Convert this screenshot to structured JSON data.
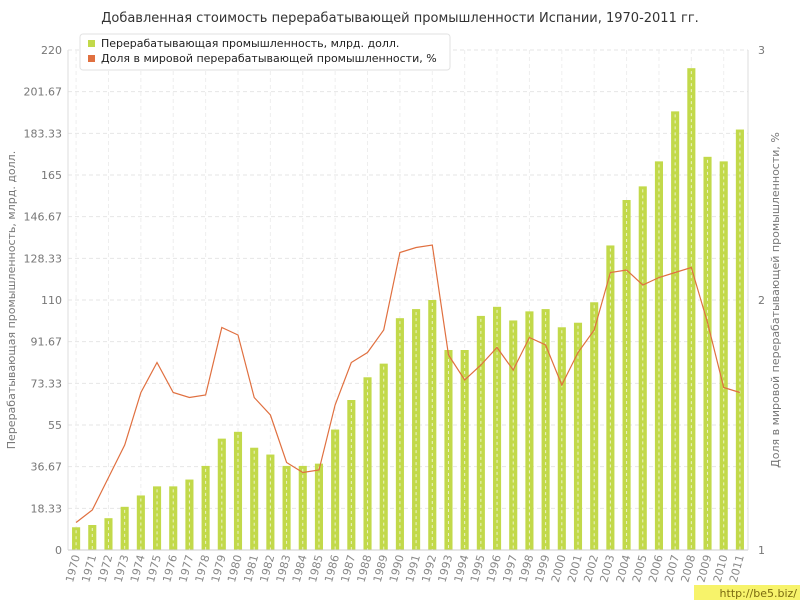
{
  "chart_data": {
    "type": "bar",
    "title": "Добавленная стоимость перерабатывающей промышленности Испании, 1970-2011 гг.",
    "ylabel_left": "Перерабатывающая промышленность, млрд. долл.",
    "ylabel_right": "Доля в мировой перерабатывающей промышленности, %",
    "ylim_left": [
      0,
      220
    ],
    "ylim_right": [
      1,
      3
    ],
    "yticks_left": [
      "0",
      "18.33",
      "36.67",
      "55",
      "73.33",
      "91.67",
      "110",
      "128.33",
      "146.67",
      "165",
      "183.33",
      "201.67",
      "220"
    ],
    "yticks_right": [
      "1",
      "2",
      "3"
    ],
    "grid": true,
    "legend_position": "top-left",
    "categories": [
      "1970",
      "1971",
      "1972",
      "1973",
      "1974",
      "1975",
      "1976",
      "1977",
      "1978",
      "1979",
      "1980",
      "1981",
      "1982",
      "1983",
      "1984",
      "1985",
      "1986",
      "1987",
      "1988",
      "1989",
      "1990",
      "1991",
      "1992",
      "1993",
      "1994",
      "1995",
      "1996",
      "1997",
      "1998",
      "1999",
      "2000",
      "2001",
      "2002",
      "2003",
      "2004",
      "2005",
      "2006",
      "2007",
      "2008",
      "2009",
      "2010",
      "2011"
    ],
    "series": [
      {
        "name": "Перерабатывающая промышленность, млрд. долл.",
        "type": "bar",
        "axis": "left",
        "color": "#c2d94a",
        "values": [
          10,
          11,
          14,
          19,
          24,
          28,
          28,
          31,
          37,
          49,
          52,
          45,
          42,
          37,
          37,
          38,
          53,
          66,
          76,
          82,
          102,
          106,
          110,
          88,
          88,
          103,
          107,
          101,
          105,
          106,
          98,
          100,
          109,
          134,
          154,
          160,
          171,
          193,
          212,
          173,
          171,
          185
        ]
      },
      {
        "name": "Доля в мировой перерабатывающей промышленности, %",
        "type": "line",
        "axis": "right",
        "color": "#e07040",
        "values": [
          1.11,
          1.16,
          1.29,
          1.42,
          1.63,
          1.75,
          1.63,
          1.61,
          1.62,
          1.89,
          1.86,
          1.61,
          1.54,
          1.35,
          1.31,
          1.32,
          1.58,
          1.75,
          1.79,
          1.88,
          2.19,
          2.21,
          2.22,
          1.78,
          1.68,
          1.74,
          1.81,
          1.72,
          1.85,
          1.82,
          1.66,
          1.79,
          1.88,
          2.11,
          2.12,
          2.06,
          2.09,
          2.11,
          2.13,
          1.91,
          1.65,
          1.63
        ]
      }
    ]
  },
  "watermark": "http://be5.biz/"
}
